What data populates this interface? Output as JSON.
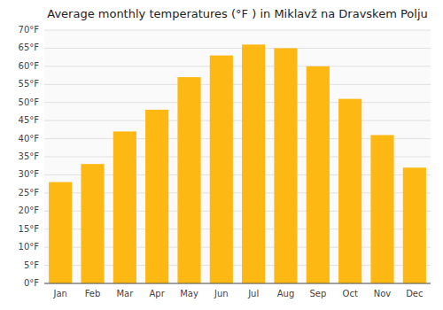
{
  "chart_data": {
    "type": "bar",
    "title": "Average monthly temperatures (°F ) in Miklavž na Dravskem Polju",
    "categories": [
      "Jan",
      "Feb",
      "Mar",
      "Apr",
      "May",
      "Jun",
      "Jul",
      "Aug",
      "Sep",
      "Oct",
      "Nov",
      "Dec"
    ],
    "values": [
      28,
      33,
      42,
      48,
      57,
      63,
      66,
      65,
      60,
      51,
      41,
      32
    ],
    "color": "#FDB813",
    "ylim": [
      0,
      70
    ],
    "yticks": [
      {
        "value": 0,
        "label": "0°F"
      },
      {
        "value": 5,
        "label": "5°F"
      },
      {
        "value": 10,
        "label": "10°F"
      },
      {
        "value": 15,
        "label": "15°F"
      },
      {
        "value": 20,
        "label": "20°F"
      },
      {
        "value": 25,
        "label": "25°F"
      },
      {
        "value": 30,
        "label": "30°F"
      },
      {
        "value": 35,
        "label": "35°F"
      },
      {
        "value": 40,
        "label": "40°F"
      },
      {
        "value": 45,
        "label": "45°F"
      },
      {
        "value": 50,
        "label": "50°F"
      },
      {
        "value": 55,
        "label": "55°F"
      },
      {
        "value": 60,
        "label": "60°F"
      },
      {
        "value": 65,
        "label": "65°F"
      },
      {
        "value": 70,
        "label": "70°F"
      }
    ],
    "grid": true
  }
}
